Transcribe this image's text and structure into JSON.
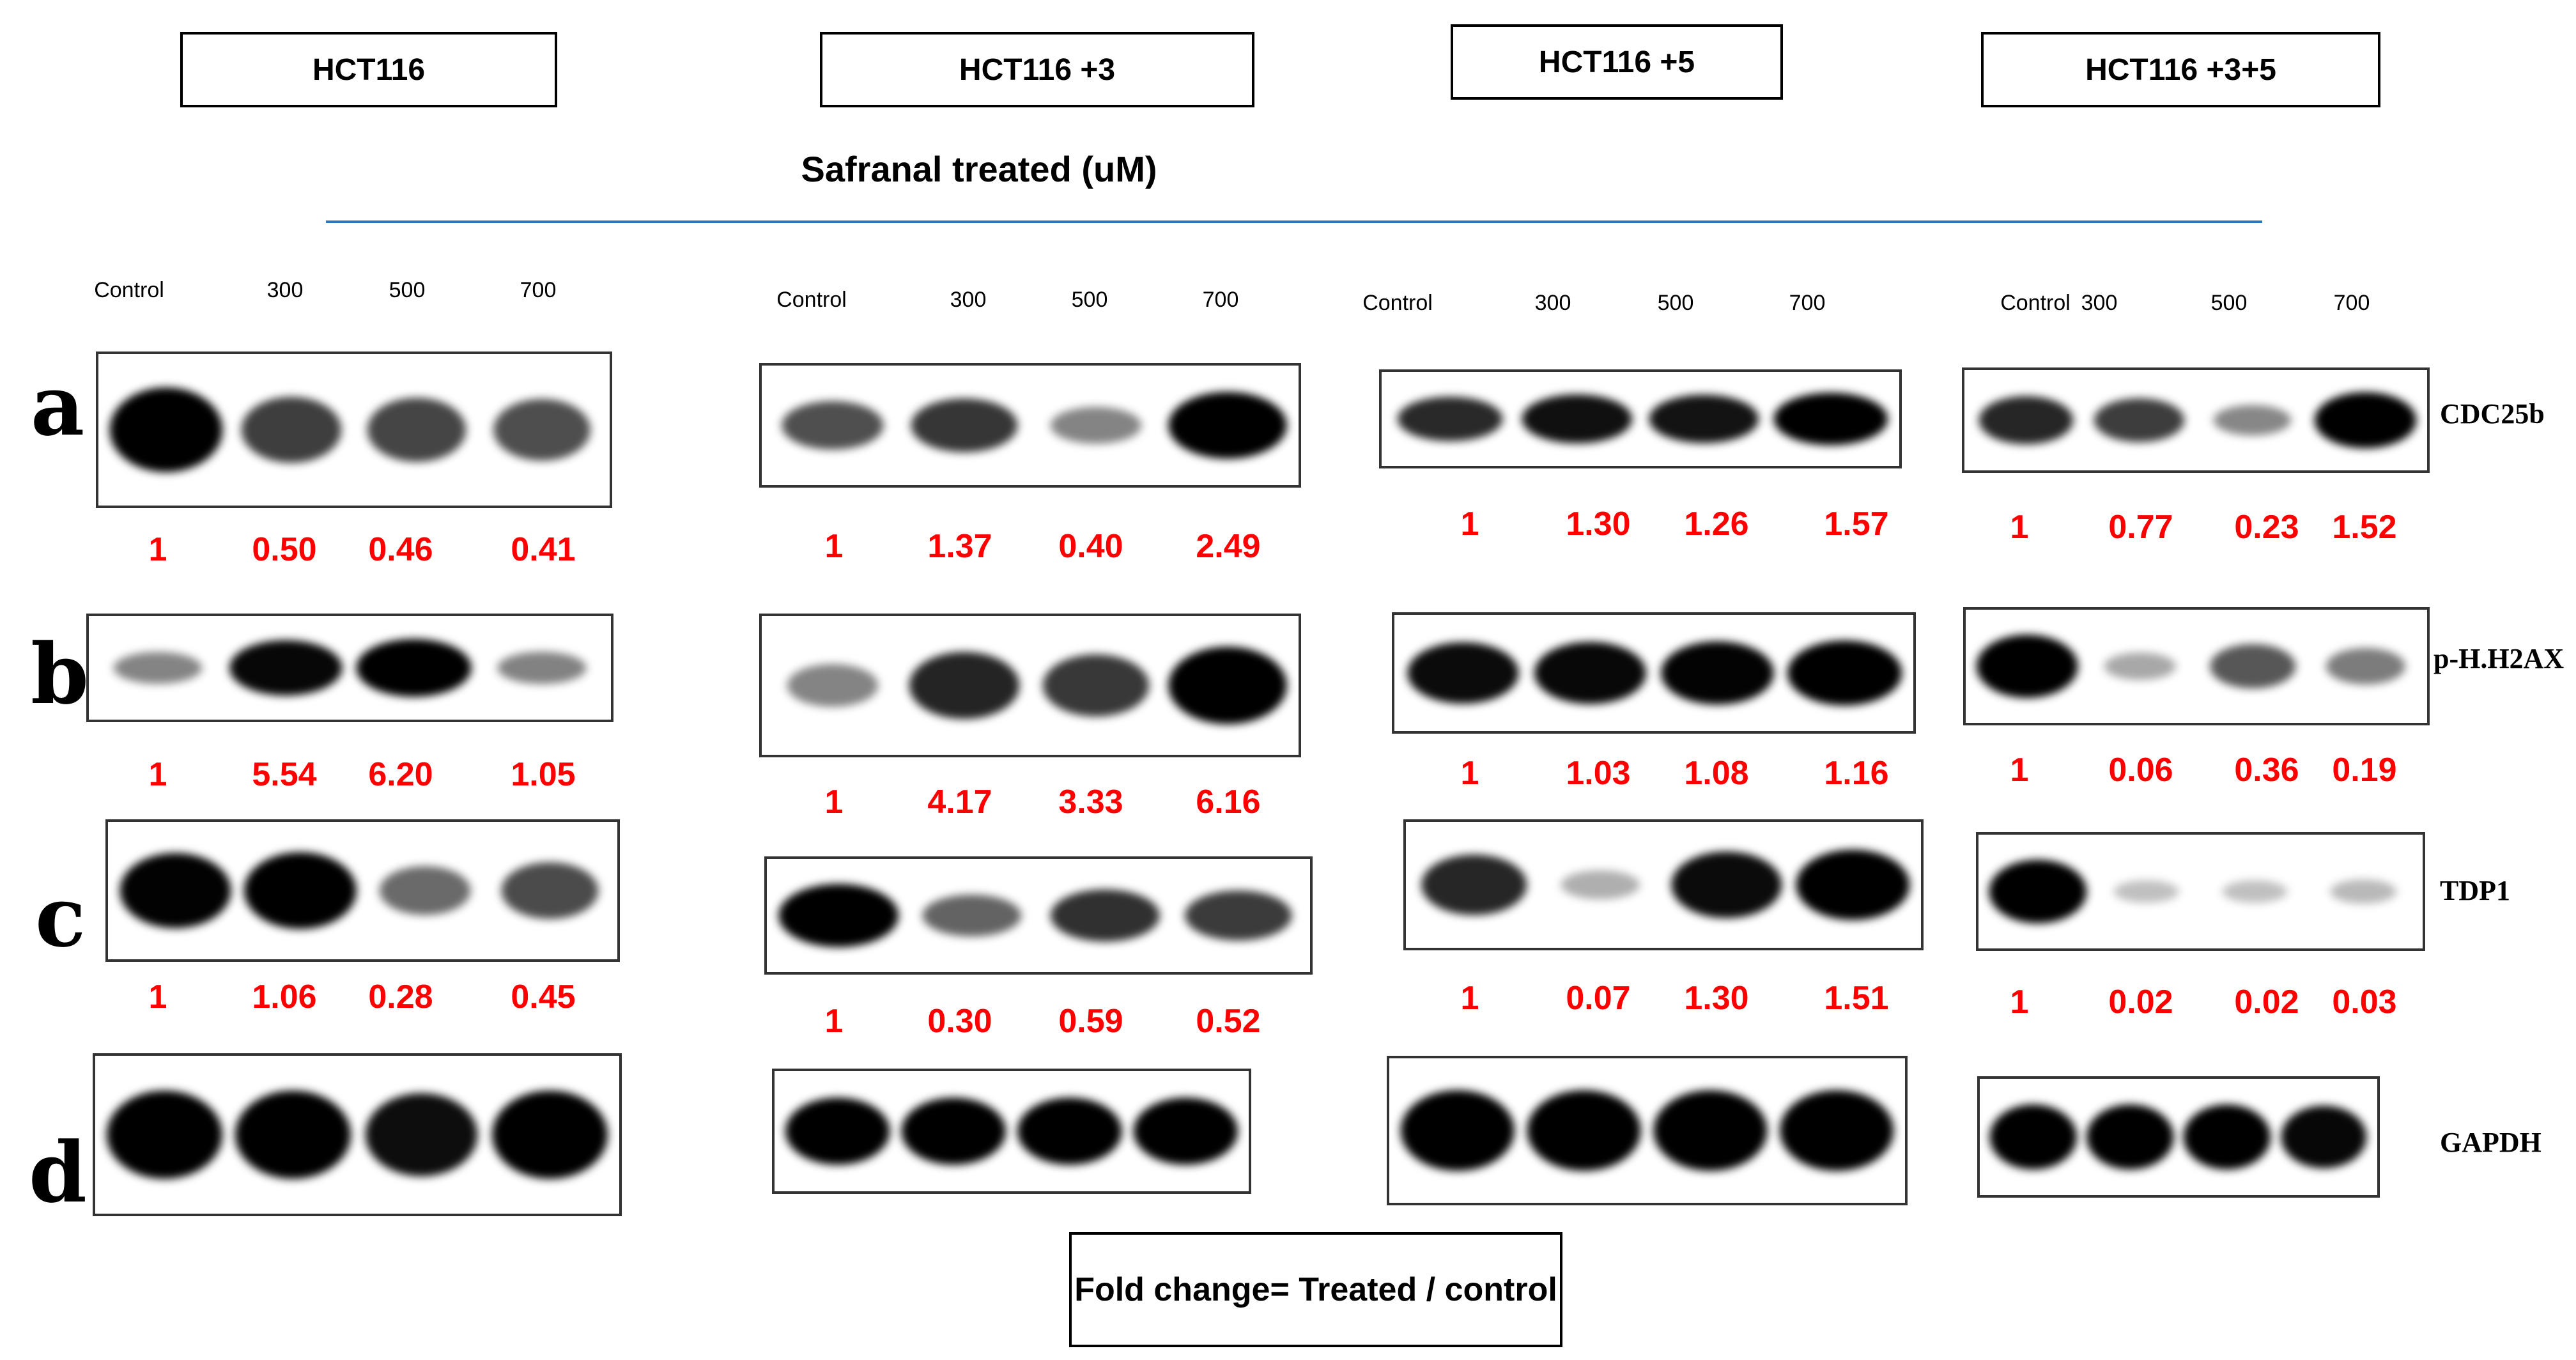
{
  "header": {
    "groups": [
      "HCT116",
      "HCT116 +3",
      "HCT116 +5",
      "HCT116 +3+5"
    ],
    "treatment_label": "Safranal treated (uM)"
  },
  "lanes": [
    "Control",
    "300",
    "500",
    "700"
  ],
  "row_letters": [
    "a",
    "b",
    "c",
    "d"
  ],
  "proteins": [
    "CDC25b",
    "p-H.H2AX",
    "TDP1",
    "GAPDH"
  ],
  "fold_changes": {
    "CDC25b": [
      [
        "1",
        "0.50",
        "0.46",
        "0.41"
      ],
      [
        "1",
        "1.37",
        "0.40",
        "2.49"
      ],
      [
        "1",
        "1.30",
        "1.26",
        "1.57"
      ],
      [
        "1",
        "0.77",
        "0.23",
        "1.52"
      ]
    ],
    "p-H.H2AX": [
      [
        "1",
        "5.54",
        "6.20",
        "1.05"
      ],
      [
        "1",
        "4.17",
        "3.33",
        "6.16"
      ],
      [
        "1",
        "1.03",
        "1.08",
        "1.16"
      ],
      [
        "1",
        "0.06",
        "0.36",
        "0.19"
      ]
    ],
    "TDP1": [
      [
        "1",
        "1.06",
        "0.28",
        "0.45"
      ],
      [
        "1",
        "0.30",
        "0.59",
        "0.52"
      ],
      [
        "1",
        "0.07",
        "1.30",
        "1.51"
      ],
      [
        "1",
        "0.02",
        "0.02",
        "0.03"
      ]
    ]
  },
  "band_intensity": {
    "CDC25b": [
      [
        1.0,
        0.5,
        0.46,
        0.41
      ],
      [
        1.0,
        1.37,
        0.4,
        2.49
      ],
      [
        1.0,
        1.3,
        1.26,
        1.57
      ],
      [
        1.0,
        0.77,
        0.23,
        1.52
      ]
    ],
    "p-H.H2AX": [
      [
        1.0,
        5.54,
        6.2,
        1.05
      ],
      [
        1.0,
        4.17,
        3.33,
        6.16
      ],
      [
        1.0,
        1.03,
        1.08,
        1.16
      ],
      [
        1.0,
        0.06,
        0.36,
        0.19
      ]
    ],
    "TDP1": [
      [
        1.0,
        1.06,
        0.28,
        0.45
      ],
      [
        1.0,
        0.3,
        0.59,
        0.52
      ],
      [
        1.0,
        0.07,
        1.3,
        1.51
      ],
      [
        1.0,
        0.02,
        0.02,
        0.03
      ]
    ],
    "GAPDH": [
      [
        1.0,
        1.0,
        0.85,
        1.0
      ],
      [
        1.0,
        1.0,
        1.0,
        1.0
      ],
      [
        1.0,
        1.0,
        1.0,
        1.0
      ],
      [
        1.0,
        1.0,
        1.0,
        0.9
      ]
    ]
  },
  "footer": "Fold change= Treated / control",
  "colors": {
    "fold_text": "#ff0000",
    "divider": "#2a79c0",
    "band": "#000000"
  }
}
